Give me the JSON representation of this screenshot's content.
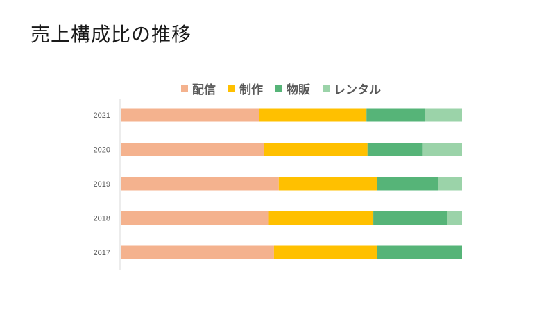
{
  "slide": {
    "title": "売上構成比の推移"
  },
  "chart_data": {
    "type": "bar",
    "orientation": "horizontal",
    "stacked": "percent",
    "categories": [
      "2021",
      "2020",
      "2019",
      "2018",
      "2017"
    ],
    "series": [
      {
        "name": "配信",
        "color": "#f4b28e",
        "values": [
          40.6,
          41.9,
          46.3,
          43.4,
          44.9
        ]
      },
      {
        "name": "制作",
        "color": "#ffc000",
        "values": [
          31.4,
          30.4,
          28.9,
          30.6,
          30.3
        ]
      },
      {
        "name": "物販",
        "color": "#56b478",
        "values": [
          17.1,
          16.2,
          17.8,
          21.7,
          24.8
        ]
      },
      {
        "name": "レンタル",
        "color": "#9bd3a9",
        "values": [
          10.9,
          11.5,
          7.0,
          4.3,
          0
        ]
      }
    ],
    "xlim": [
      0,
      100
    ],
    "legend_position": "top",
    "grid": false
  }
}
